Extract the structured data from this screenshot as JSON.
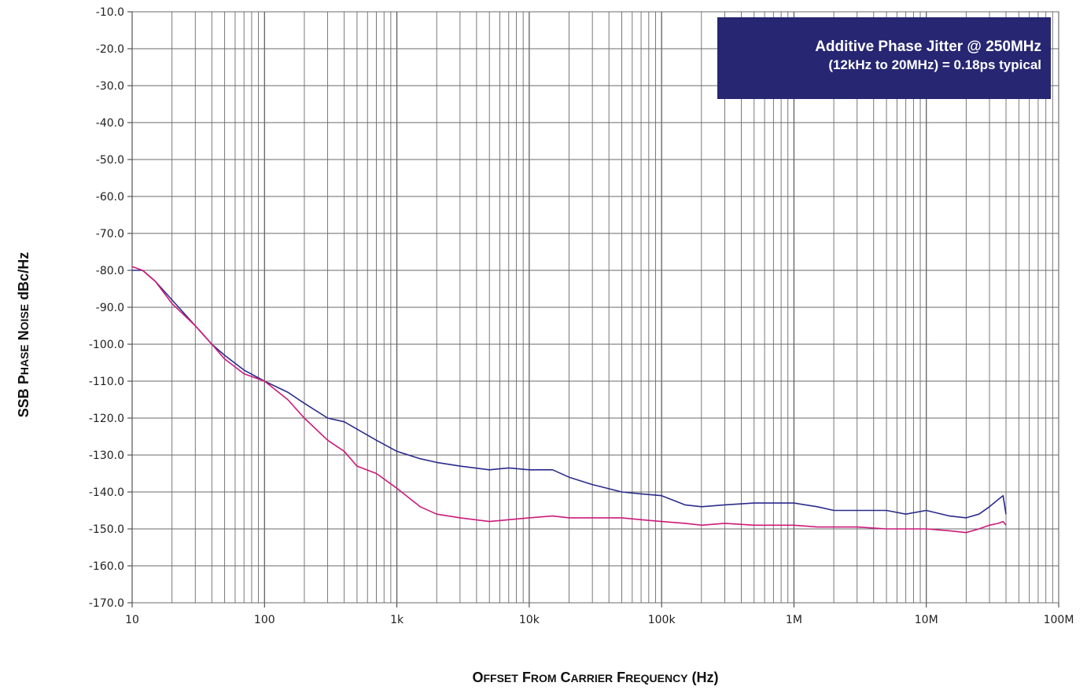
{
  "chart_data": {
    "type": "line",
    "x_scale": "log",
    "xlim": [
      10,
      100000000
    ],
    "ylim": [
      -170,
      -10
    ],
    "grid": true,
    "x_tick_labels": [
      "10",
      "100",
      "1k",
      "10k",
      "100k",
      "1M",
      "10M",
      "100M"
    ],
    "y_tick_labels": [
      "-10.0",
      "-20.0",
      "-30.0",
      "-40.0",
      "-50.0",
      "-60.0",
      "-70.0",
      "-80.0",
      "-90.0",
      "-100.0",
      "-110.0",
      "-120.0",
      "-130.0",
      "-140.0",
      "-150.0",
      "-160.0",
      "-170.0"
    ],
    "xlabel_parts": [
      {
        "big": "O",
        "small": "FFSET"
      },
      {
        "big": "F",
        "small": "ROM"
      },
      {
        "big": "C",
        "small": "ARRIER"
      },
      {
        "big": "F",
        "small": "REQUENCY"
      },
      {
        "big": "(Hz)",
        "small": ""
      }
    ],
    "ylabel_parts": [
      {
        "big": "SSB",
        "small": ""
      },
      {
        "big": "P",
        "small": "HASE"
      },
      {
        "big": "N",
        "small": "OISE"
      },
      {
        "big": "dBc/Hz",
        "small": ""
      }
    ],
    "annotation": {
      "line1": "Additive Phase Jitter @ 250MHz",
      "line2": "(12kHz to 20MHz) = 0.18ps typical"
    },
    "series": [
      {
        "color": "#2b2b8c",
        "x": [
          10,
          12,
          15,
          20,
          30,
          40,
          50,
          70,
          100,
          150,
          200,
          300,
          400,
          500,
          700,
          1000,
          1500,
          2000,
          3000,
          5000,
          7000,
          10000,
          15000,
          20000,
          30000,
          50000,
          70000,
          100000,
          150000,
          200000,
          300000,
          500000,
          700000,
          1000000,
          1500000,
          2000000,
          3000000,
          5000000,
          7000000,
          10000000,
          15000000,
          20000000,
          25000000,
          30000000,
          35000000,
          38000000,
          40000000
        ],
        "y": [
          -80,
          -80,
          -83,
          -88,
          -95,
          -100,
          -103,
          -107,
          -110,
          -113,
          -116,
          -120,
          -121,
          -123,
          -126,
          -129,
          -131,
          -132,
          -133,
          -134,
          -133.5,
          -134,
          -134,
          -136,
          -138,
          -140,
          -140.5,
          -141,
          -143.5,
          -144,
          -143.5,
          -143,
          -143,
          -143,
          -144,
          -145,
          -145,
          -145,
          -146,
          -145,
          -146.5,
          -147,
          -146,
          -144,
          -142,
          -141,
          -146
        ]
      },
      {
        "color": "#cc1a7a",
        "x": [
          10,
          12,
          15,
          20,
          30,
          40,
          50,
          70,
          100,
          150,
          200,
          300,
          400,
          500,
          700,
          1000,
          1500,
          2000,
          3000,
          5000,
          7000,
          10000,
          15000,
          20000,
          30000,
          50000,
          70000,
          100000,
          150000,
          200000,
          300000,
          500000,
          700000,
          1000000,
          1500000,
          2000000,
          3000000,
          5000000,
          7000000,
          10000000,
          15000000,
          20000000,
          25000000,
          30000000,
          35000000,
          38000000,
          40000000
        ],
        "y": [
          -79,
          -80,
          -83,
          -89,
          -95,
          -100,
          -104,
          -108,
          -110,
          -115,
          -120,
          -126,
          -129,
          -133,
          -135,
          -139,
          -144,
          -146,
          -147,
          -148,
          -147.5,
          -147,
          -146.5,
          -147,
          -147,
          -147,
          -147.5,
          -148,
          -148.5,
          -149,
          -148.5,
          -149,
          -149,
          -149,
          -149.5,
          -149.5,
          -149.5,
          -150,
          -150,
          -150,
          -150.5,
          -151,
          -150,
          -149,
          -148.5,
          -148,
          -149
        ]
      }
    ]
  }
}
